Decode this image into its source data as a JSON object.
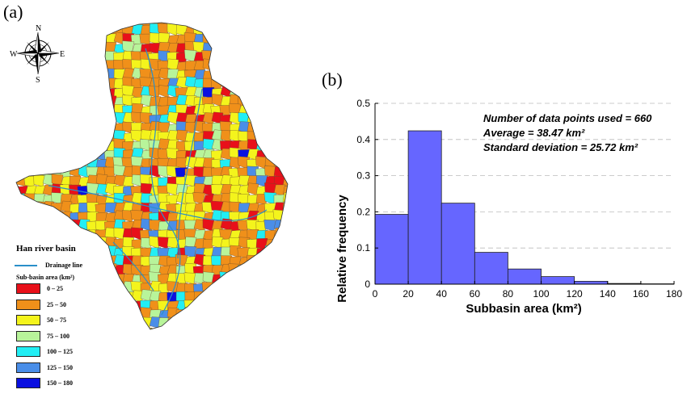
{
  "panels": {
    "a": "(a)",
    "b": "(b)"
  },
  "compass": {
    "n": "N",
    "s": "S",
    "e": "E",
    "w": "W"
  },
  "legend": {
    "title": "Han river basin",
    "drainage_label": "Drainage line",
    "subbasin_title": "Sub-basin area (km²)",
    "classes": [
      {
        "label": "0 – 25",
        "color": "#e8101a"
      },
      {
        "label": "25 – 50",
        "color": "#f0901a"
      },
      {
        "label": "50 – 75",
        "color": "#f4f41c"
      },
      {
        "label": "75 – 100",
        "color": "#b8f49a"
      },
      {
        "label": "100 – 125",
        "color": "#22eef4"
      },
      {
        "label": "125 – 150",
        "color": "#4a8ee8"
      },
      {
        "label": "150 – 180",
        "color": "#0a10e0"
      }
    ]
  },
  "chart_data": {
    "type": "bar",
    "x_bins": [
      [
        0,
        20
      ],
      [
        20,
        40
      ],
      [
        40,
        60
      ],
      [
        60,
        80
      ],
      [
        80,
        100
      ],
      [
        100,
        120
      ],
      [
        120,
        140
      ],
      [
        140,
        160
      ],
      [
        160,
        180
      ]
    ],
    "values": [
      0.193,
      0.424,
      0.224,
      0.088,
      0.042,
      0.021,
      0.008,
      0.002,
      0.001
    ],
    "xlabel": "Subbasin area (km²)",
    "ylabel": "Relative frequency",
    "xlim": [
      0,
      180
    ],
    "ylim": [
      0,
      0.5
    ],
    "xticks": [
      "0",
      "20",
      "40",
      "60",
      "80",
      "100",
      "120",
      "140",
      "160",
      "180"
    ],
    "yticks": [
      "0",
      "0.1",
      "0.2",
      "0.3",
      "0.4",
      "0.5"
    ],
    "bar_color": "#6666ff",
    "grid": "horizontal dashed",
    "annotations": [
      "Number of data points used = 660",
      "Average = 38.47 km²",
      "Standard deviation = 25.72 km²"
    ]
  }
}
